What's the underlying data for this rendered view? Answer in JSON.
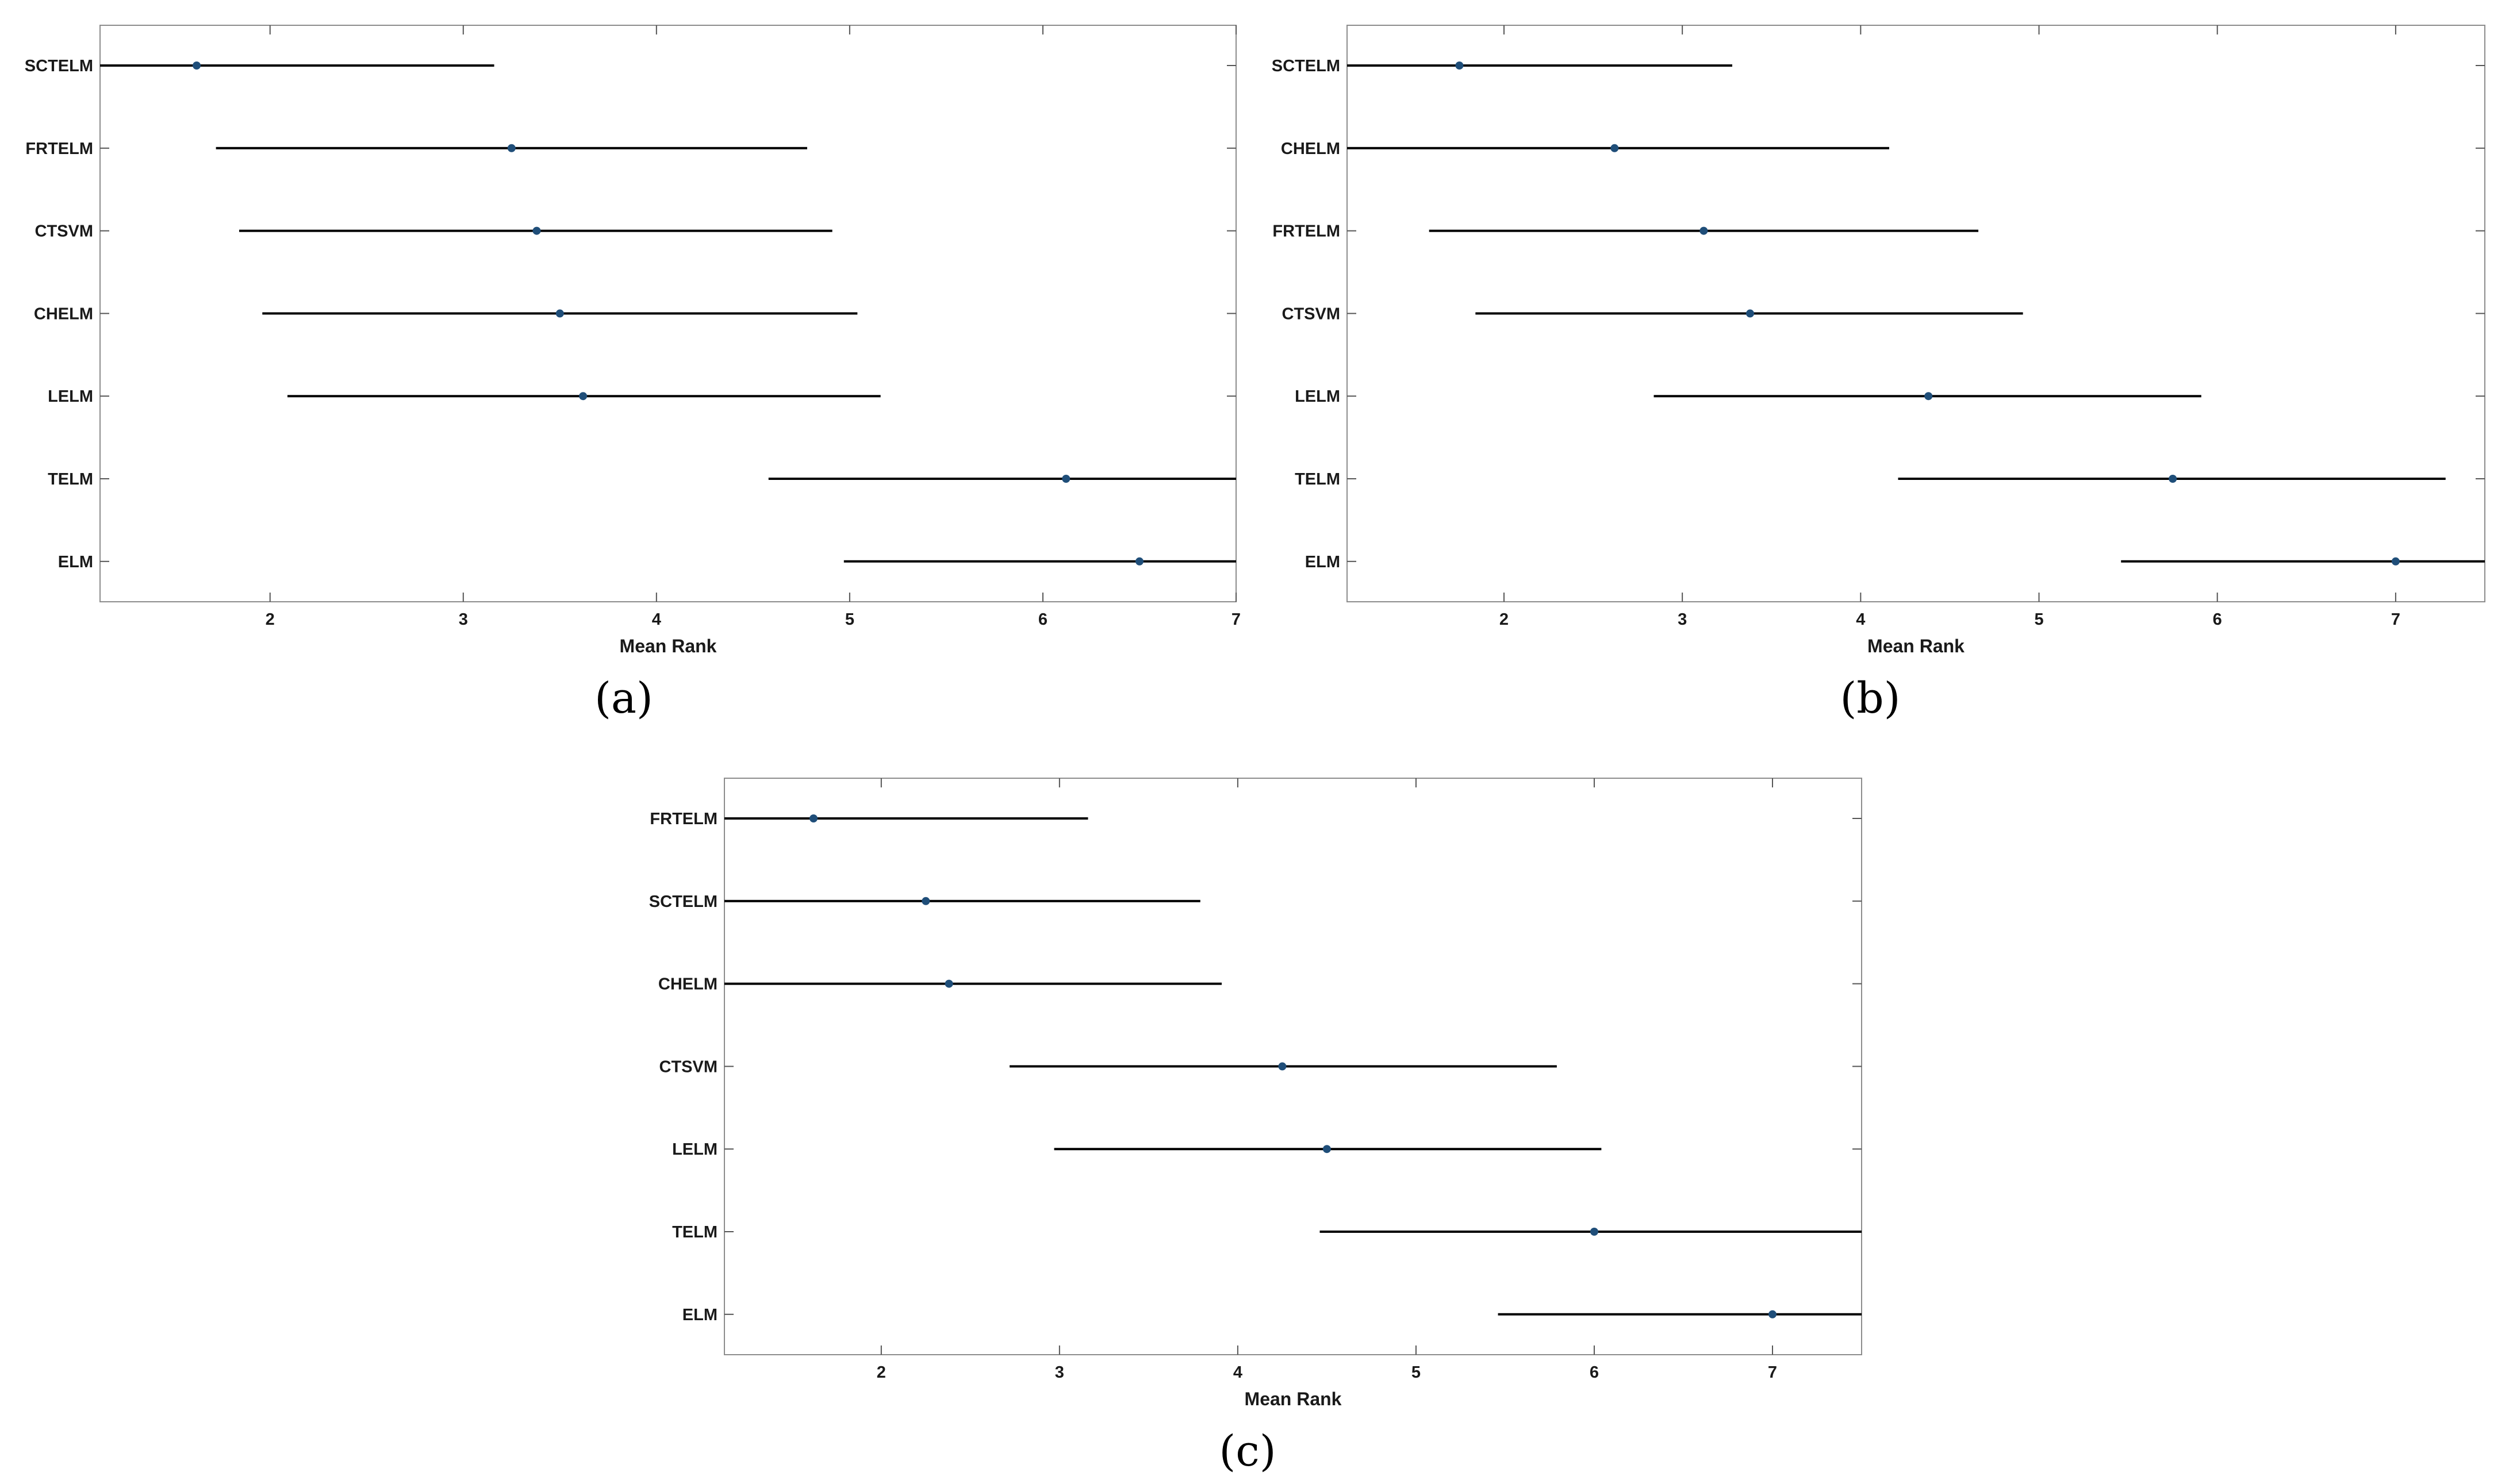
{
  "chart_data": [
    {
      "type": "scatter",
      "panel_label": "(a)",
      "xlabel": "Mean Rank",
      "ylabel": "",
      "xlim": [
        1.12,
        7.0
      ],
      "xticks": [
        "2",
        "3",
        "4",
        "5",
        "6",
        "7"
      ],
      "grid": false,
      "categories": [
        "SCTELM",
        "FRTELM",
        "CTSVM",
        "CHELM",
        "LELM",
        "TELM",
        "ELM"
      ],
      "series": [
        {
          "values": [
            1.62,
            3.25,
            3.38,
            3.5,
            3.62,
            6.12,
            6.5
          ],
          "interval_low": [
            1.1,
            1.72,
            1.84,
            1.96,
            2.09,
            4.58,
            4.97
          ],
          "interval_high": [
            3.16,
            4.78,
            4.91,
            5.04,
            5.16,
            7.0,
            7.0
          ]
        }
      ],
      "colors": {
        "mean_marker": "#1f4e79",
        "interval": "#000000"
      }
    },
    {
      "type": "scatter",
      "panel_label": "(b)",
      "xlabel": "Mean Rank",
      "ylabel": "",
      "xlim": [
        1.12,
        7.5
      ],
      "xticks": [
        "2",
        "3",
        "4",
        "5",
        "6",
        "7"
      ],
      "grid": false,
      "categories": [
        "SCTELM",
        "CHELM",
        "FRTELM",
        "CTSVM",
        "LELM",
        "TELM",
        "ELM"
      ],
      "series": [
        {
          "values": [
            1.75,
            2.62,
            3.12,
            3.38,
            4.38,
            5.75,
            7.0
          ],
          "interval_low": [
            1.1,
            1.1,
            1.58,
            1.84,
            2.84,
            4.21,
            5.46
          ],
          "interval_high": [
            3.28,
            4.16,
            4.66,
            4.91,
            5.91,
            7.28,
            7.5
          ]
        }
      ],
      "colors": {
        "mean_marker": "#1f4e79",
        "interval": "#000000"
      }
    },
    {
      "type": "scatter",
      "panel_label": "(c)",
      "xlabel": "Mean Rank",
      "ylabel": "",
      "xlim": [
        1.12,
        7.5
      ],
      "xticks": [
        "2",
        "3",
        "4",
        "5",
        "6",
        "7"
      ],
      "grid": false,
      "categories": [
        "FRTELM",
        "SCTELM",
        "CHELM",
        "CTSVM",
        "LELM",
        "TELM",
        "ELM"
      ],
      "series": [
        {
          "values": [
            1.62,
            2.25,
            2.38,
            4.25,
            4.5,
            6.0,
            7.0
          ],
          "interval_low": [
            1.1,
            1.1,
            1.1,
            2.72,
            2.97,
            4.46,
            5.46
          ],
          "interval_high": [
            3.16,
            3.79,
            3.91,
            5.79,
            6.04,
            7.5,
            7.5
          ]
        }
      ],
      "colors": {
        "mean_marker": "#1f4e79",
        "interval": "#000000"
      }
    }
  ]
}
